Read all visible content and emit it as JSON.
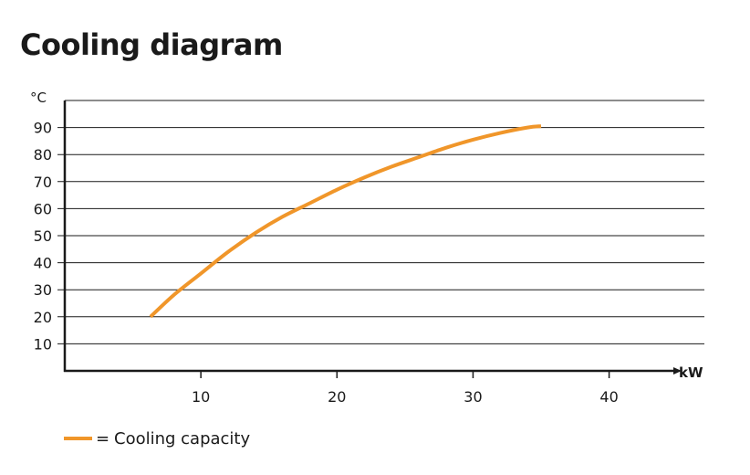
{
  "chart_data": {
    "type": "line",
    "title": "Cooling diagram",
    "ylabel": "°C",
    "xlabel": "kW",
    "xlim": [
      0,
      47
    ],
    "ylim": [
      0,
      100
    ],
    "xticks": [
      10,
      20,
      30,
      40
    ],
    "yticks": [
      10,
      20,
      30,
      40,
      50,
      60,
      70,
      80,
      90
    ],
    "grid": "horizontal",
    "legend_position": "bottom-left",
    "series": [
      {
        "name": "Cooling capacity",
        "color": "#f0962a",
        "x": [
          6.3,
          8,
          10,
          12,
          14,
          16,
          18,
          20,
          22,
          24,
          26,
          28,
          30,
          32,
          34,
          35
        ],
        "y": [
          20,
          28,
          36,
          44,
          51,
          57,
          62,
          67,
          71.5,
          75.5,
          79,
          82.5,
          85.5,
          88,
          90,
          90.5
        ]
      }
    ]
  },
  "legend": {
    "prefix": "=",
    "label": "Cooling capacity"
  }
}
